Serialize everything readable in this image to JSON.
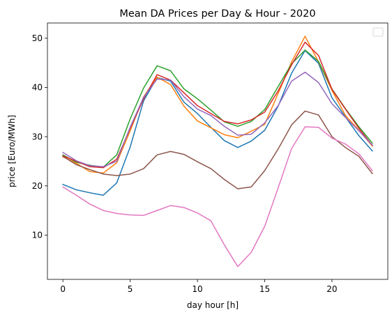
{
  "chart_data": {
    "type": "line",
    "title": "Mean DA Prices per Day & Hour - 2020",
    "xlabel": "day hour [h]",
    "ylabel": "price [Euro/MWh]",
    "xlim": [
      -1.15,
      24.15
    ],
    "ylim": [
      1.0,
      53.1
    ],
    "xticks": [
      0,
      5,
      10,
      15,
      20
    ],
    "yticks": [
      10,
      20,
      30,
      40,
      50
    ],
    "x": [
      0,
      1,
      2,
      3,
      4,
      5,
      6,
      7,
      8,
      9,
      10,
      11,
      12,
      13,
      14,
      15,
      16,
      17,
      18,
      19,
      20,
      21,
      22,
      23
    ],
    "legend": {
      "placement": "top-right",
      "entries": []
    },
    "series": [
      {
        "color": "#1f77b4",
        "values": [
          20.3,
          19.2,
          18.6,
          18.1,
          20.6,
          27.9,
          37.3,
          42.0,
          41.3,
          37.0,
          34.7,
          31.9,
          29.2,
          27.8,
          29.1,
          31.3,
          36.2,
          42.9,
          47.5,
          44.9,
          37.9,
          34.0,
          30.2,
          27.1
        ]
      },
      {
        "color": "#ff7f0e",
        "values": [
          25.9,
          24.6,
          22.9,
          22.6,
          24.7,
          31.2,
          38.1,
          42.1,
          40.6,
          36.2,
          33.2,
          31.8,
          30.4,
          29.8,
          31.1,
          32.5,
          38.8,
          45.2,
          50.4,
          45.2,
          39.4,
          34.3,
          31.3,
          28.1
        ]
      },
      {
        "color": "#2ca02c",
        "values": [
          26.3,
          24.8,
          24.2,
          23.8,
          26.3,
          33.6,
          39.9,
          44.4,
          43.4,
          39.7,
          37.7,
          35.4,
          33.0,
          32.1,
          33.1,
          35.5,
          40.2,
          44.8,
          47.6,
          45.3,
          39.7,
          35.7,
          32.0,
          28.7
        ]
      },
      {
        "color": "#d62728",
        "values": [
          26.1,
          25.0,
          23.9,
          23.7,
          25.4,
          31.7,
          37.7,
          42.6,
          41.5,
          38.9,
          36.3,
          34.7,
          33.1,
          32.6,
          33.4,
          35.0,
          39.3,
          44.6,
          49.2,
          46.5,
          39.6,
          35.6,
          31.7,
          28.2
        ]
      },
      {
        "color": "#9467bd",
        "values": [
          26.8,
          25.1,
          24.1,
          23.9,
          25.0,
          31.9,
          38.0,
          41.7,
          41.5,
          38.1,
          35.6,
          34.3,
          32.1,
          30.3,
          30.5,
          32.8,
          36.3,
          41.3,
          43.1,
          41.0,
          36.7,
          33.9,
          31.2,
          28.3
        ]
      },
      {
        "color": "#8c564b",
        "values": [
          26.0,
          24.3,
          23.3,
          22.4,
          22.1,
          22.4,
          23.5,
          26.3,
          27.0,
          26.4,
          24.9,
          23.5,
          21.3,
          19.4,
          19.8,
          23.1,
          27.5,
          32.4,
          35.2,
          34.4,
          30.0,
          27.8,
          26.0,
          22.5
        ]
      },
      {
        "color": "#e377c2",
        "values": [
          19.8,
          18.1,
          16.3,
          15.0,
          14.4,
          14.1,
          14.0,
          15.0,
          16.0,
          15.6,
          14.5,
          12.9,
          8.0,
          3.6,
          6.5,
          11.8,
          19.6,
          27.6,
          32.0,
          31.9,
          29.7,
          28.5,
          26.5,
          23.1
        ]
      }
    ]
  }
}
